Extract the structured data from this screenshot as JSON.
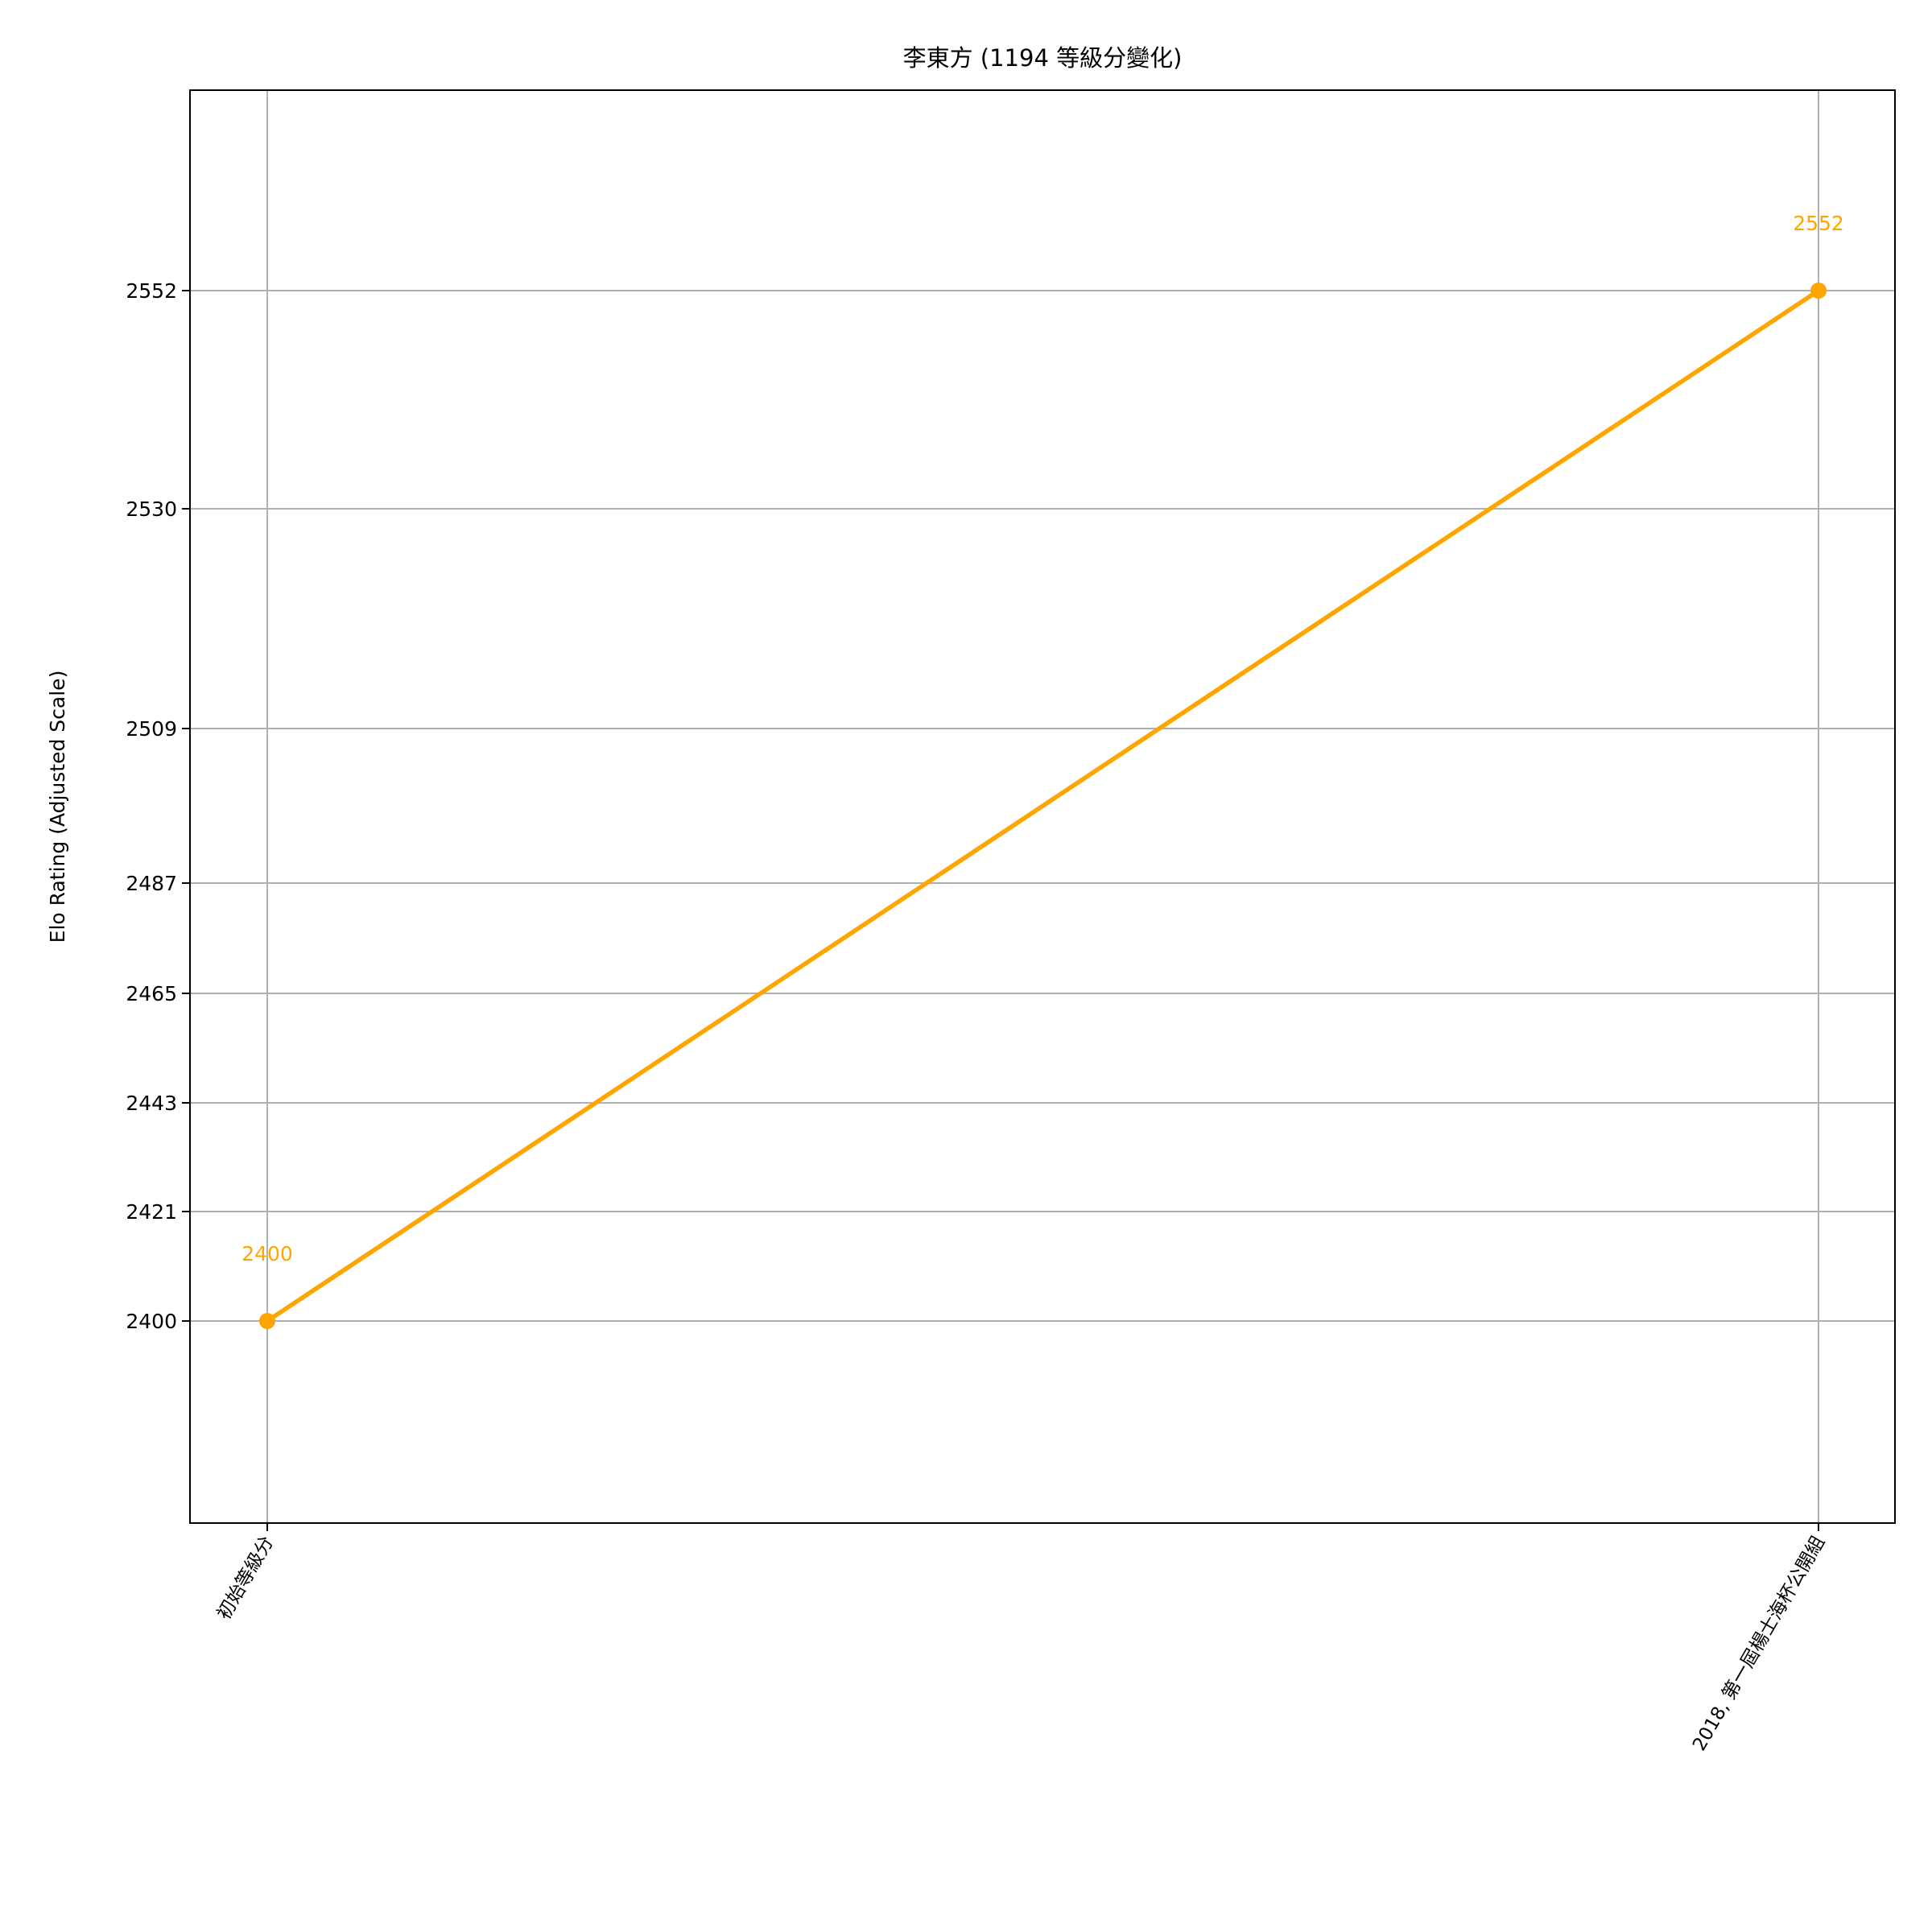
{
  "chart_data": {
    "type": "line",
    "title": "李東方 (1194 等級分變化)",
    "xlabel": "",
    "ylabel": "Elo Rating (Adjusted Scale)",
    "categories": [
      "初始等級分",
      "2018, 第一屆楊士海杯公開組"
    ],
    "series": [
      {
        "values": [
          2400,
          2552
        ],
        "color": "#FFA500",
        "data_labels": [
          "2400",
          "2552"
        ]
      }
    ],
    "y_ticks": [
      2400,
      2421,
      2443,
      2465,
      2487,
      2509,
      2530,
      2552
    ],
    "y_scale": "adjusted (non-linear)",
    "grid": true,
    "legend": "none"
  }
}
